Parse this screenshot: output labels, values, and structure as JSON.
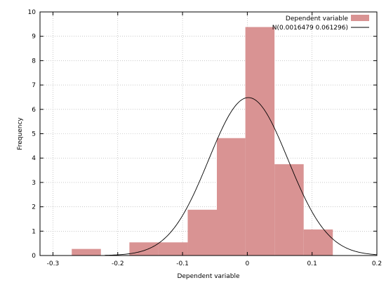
{
  "chart_data": {
    "type": "bar",
    "xlabel": "Dependent variable",
    "ylabel": "Frequency",
    "xlim": [
      -0.32,
      0.2
    ],
    "ylim": [
      0,
      10
    ],
    "x_ticks": [
      {
        "value": -0.3,
        "label": "-0.3"
      },
      {
        "value": -0.2,
        "label": "-0.2"
      },
      {
        "value": -0.1,
        "label": "-0.1"
      },
      {
        "value": 0,
        "label": "0"
      },
      {
        "value": 0.1,
        "label": "0.1"
      },
      {
        "value": 0.2,
        "label": "0.2"
      }
    ],
    "y_ticks": [
      {
        "value": 0,
        "label": "0"
      },
      {
        "value": 1,
        "label": "1"
      },
      {
        "value": 2,
        "label": "2"
      },
      {
        "value": 3,
        "label": "3"
      },
      {
        "value": 4,
        "label": "4"
      },
      {
        "value": 5,
        "label": "5"
      },
      {
        "value": 6,
        "label": "6"
      },
      {
        "value": 7,
        "label": "7"
      },
      {
        "value": 8,
        "label": "8"
      },
      {
        "value": 9,
        "label": "9"
      },
      {
        "value": 10,
        "label": "10"
      }
    ],
    "histogram": {
      "name": "Dependent variable",
      "color": "#d99393",
      "bins": [
        {
          "from": -0.271,
          "to": -0.226,
          "value": 0.27
        },
        {
          "from": -0.226,
          "to": -0.182,
          "value": 0
        },
        {
          "from": -0.182,
          "to": -0.137,
          "value": 0.54
        },
        {
          "from": -0.137,
          "to": -0.092,
          "value": 0.54
        },
        {
          "from": -0.092,
          "to": -0.047,
          "value": 1.88
        },
        {
          "from": -0.047,
          "to": -0.003,
          "value": 4.82
        },
        {
          "from": -0.003,
          "to": 0.042,
          "value": 9.38
        },
        {
          "from": 0.042,
          "to": 0.087,
          "value": 3.75
        },
        {
          "from": 0.087,
          "to": 0.132,
          "value": 1.07
        }
      ]
    },
    "normal_curve": {
      "name": "N(0.0016479 0.061296)",
      "mean": 0.0016479,
      "sd": 0.061296,
      "color": "#000000",
      "x_from": -0.22,
      "x_to": 0.2
    },
    "legend": "top-right",
    "grid": true
  }
}
